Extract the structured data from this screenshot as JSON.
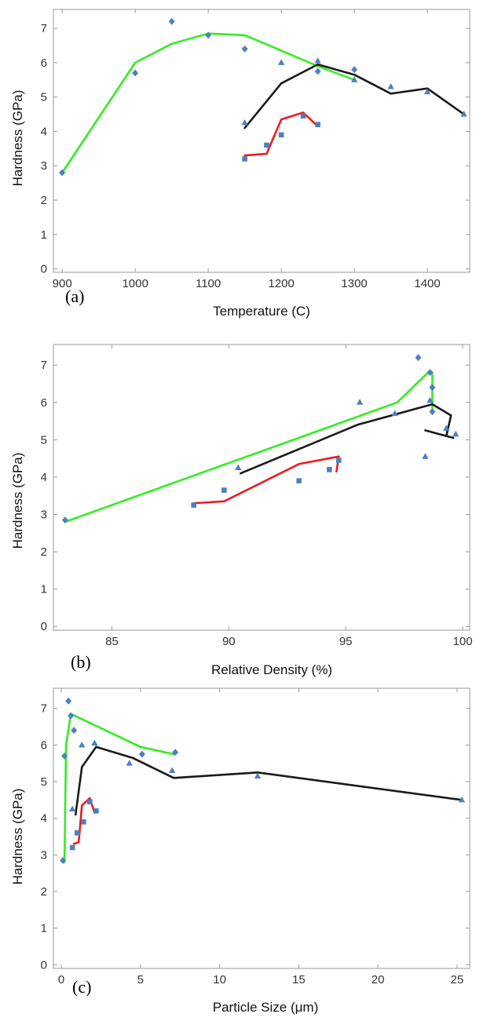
{
  "colors": {
    "green": "#33ee22",
    "black": "#1a1a1a",
    "red": "#ee1c1c",
    "marker": "#4f7fbf",
    "frame": "#9a9a9a"
  },
  "chart_data": [
    {
      "type": "scatter",
      "panel_label": "(a)",
      "xlabel": "Temperature (C)",
      "ylabel": "Hardness (GPa)",
      "xlim": [
        888,
        1458
      ],
      "ylim": [
        -0.1,
        7.55
      ],
      "xticks": [
        900,
        1000,
        1100,
        1200,
        1300,
        1400
      ],
      "yticks": [
        0,
        1,
        2,
        3,
        4,
        5,
        6,
        7
      ],
      "series": [
        {
          "color": "green",
          "marker": "diamond",
          "x": [
            900,
            1000,
            1050,
            1100,
            1150,
            1200,
            1250,
            1300
          ],
          "y": [
            2.8,
            6.0,
            6.55,
            6.85,
            6.8,
            6.35,
            5.9,
            5.5
          ],
          "points": [
            [
              900,
              2.8
            ],
            [
              1000,
              5.7
            ],
            [
              1050,
              7.2
            ],
            [
              1100,
              6.8
            ],
            [
              1150,
              6.4
            ],
            [
              1250,
              5.75
            ],
            [
              1300,
              5.8
            ]
          ]
        },
        {
          "color": "black",
          "marker": "triangle",
          "x": [
            1150,
            1200,
            1250,
            1300,
            1350,
            1400,
            1450
          ],
          "y": [
            4.1,
            5.4,
            5.95,
            5.65,
            5.1,
            5.25,
            4.5
          ],
          "points": [
            [
              1150,
              4.25
            ],
            [
              1200,
              6.0
            ],
            [
              1250,
              6.05
            ],
            [
              1300,
              5.5
            ],
            [
              1350,
              5.3
            ],
            [
              1400,
              5.15
            ],
            [
              1450,
              4.5
            ]
          ]
        },
        {
          "color": "red",
          "marker": "square",
          "x": [
            1150,
            1180,
            1200,
            1230,
            1250
          ],
          "y": [
            3.3,
            3.35,
            4.35,
            4.55,
            4.15
          ],
          "points": [
            [
              1150,
              3.2
            ],
            [
              1180,
              3.6
            ],
            [
              1200,
              3.9
            ],
            [
              1230,
              4.45
            ],
            [
              1250,
              4.2
            ]
          ]
        }
      ]
    },
    {
      "type": "scatter",
      "panel_label": "(b)",
      "xlabel": "Relative Density (%)",
      "ylabel": "Hardness (GPa)",
      "xlim": [
        82.5,
        100.3
      ],
      "ylim": [
        -0.1,
        7.55
      ],
      "xticks": [
        85,
        90,
        95,
        100
      ],
      "yticks": [
        0,
        1,
        2,
        3,
        4,
        5,
        6,
        7
      ],
      "series": [
        {
          "color": "green",
          "marker": "diamond",
          "x": [
            83.0,
            97.2,
            98.6,
            98.7,
            98.7
          ],
          "y": [
            2.8,
            6.0,
            6.85,
            6.8,
            5.75
          ],
          "points": [
            [
              83.0,
              2.85
            ],
            [
              98.1,
              7.2
            ],
            [
              98.6,
              6.8
            ],
            [
              98.7,
              6.4
            ],
            [
              98.7,
              5.75
            ]
          ]
        },
        {
          "color": "black",
          "marker": "triangle",
          "x": [
            90.5,
            95.5,
            98.7,
            99.5,
            99.3,
            99.6,
            98.4
          ],
          "y": [
            4.1,
            5.4,
            5.95,
            5.65,
            5.1,
            5.05,
            5.25
          ],
          "points": [
            [
              90.4,
              4.25
            ],
            [
              95.6,
              6.0
            ],
            [
              97.1,
              5.7
            ],
            [
              98.6,
              6.05
            ],
            [
              99.3,
              5.3
            ],
            [
              99.7,
              5.15
            ],
            [
              98.4,
              4.55
            ]
          ]
        },
        {
          "color": "red",
          "marker": "square",
          "x": [
            88.5,
            89.8,
            93.0,
            94.7,
            94.6
          ],
          "y": [
            3.3,
            3.35,
            4.35,
            4.55,
            4.15
          ],
          "points": [
            [
              88.5,
              3.25
            ],
            [
              89.8,
              3.65
            ],
            [
              93.0,
              3.9
            ],
            [
              94.3,
              4.2
            ],
            [
              94.7,
              4.45
            ]
          ]
        }
      ]
    },
    {
      "type": "scatter",
      "panel_label": "(c)",
      "xlabel": "Particle Size (μm)",
      "ylabel": "Hardness (GPa)",
      "xlim": [
        -0.5,
        25.8
      ],
      "ylim": [
        -0.1,
        7.55
      ],
      "xticks": [
        0,
        5,
        10,
        15,
        20,
        25
      ],
      "yticks": [
        0,
        1,
        2,
        3,
        4,
        5,
        6,
        7
      ],
      "series": [
        {
          "color": "green",
          "marker": "diamond",
          "x": [
            0.2,
            0.3,
            0.6,
            5.0,
            7.1
          ],
          "y": [
            2.8,
            6.0,
            6.85,
            5.95,
            5.75
          ],
          "points": [
            [
              0.1,
              2.85
            ],
            [
              0.2,
              5.7
            ],
            [
              0.45,
              7.2
            ],
            [
              0.6,
              6.8
            ],
            [
              0.8,
              6.4
            ],
            [
              5.1,
              5.75
            ],
            [
              7.2,
              5.8
            ]
          ]
        },
        {
          "color": "black",
          "marker": "triangle",
          "x": [
            0.9,
            1.3,
            2.2,
            4.5,
            7.1,
            12.4,
            25.3
          ],
          "y": [
            4.1,
            5.4,
            5.95,
            5.65,
            5.1,
            5.25,
            4.5
          ],
          "points": [
            [
              0.7,
              4.25
            ],
            [
              1.3,
              6.0
            ],
            [
              2.1,
              6.05
            ],
            [
              4.3,
              5.5
            ],
            [
              7.0,
              5.3
            ],
            [
              12.4,
              5.15
            ],
            [
              25.3,
              4.5
            ]
          ]
        },
        {
          "color": "red",
          "marker": "square",
          "x": [
            0.8,
            1.1,
            1.3,
            1.8,
            2.1
          ],
          "y": [
            3.3,
            3.35,
            4.35,
            4.55,
            4.15
          ],
          "points": [
            [
              0.7,
              3.2
            ],
            [
              1.0,
              3.6
            ],
            [
              1.4,
              3.9
            ],
            [
              1.8,
              4.45
            ],
            [
              2.2,
              4.2
            ]
          ]
        }
      ]
    }
  ]
}
